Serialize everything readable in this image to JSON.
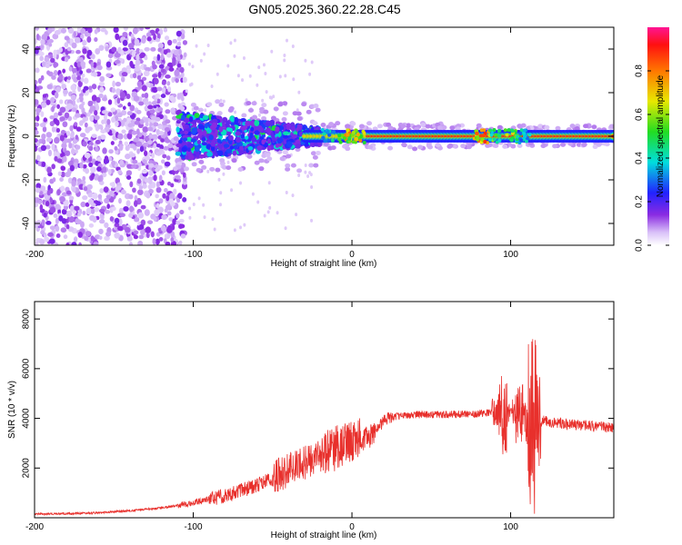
{
  "title": "GN05.2025.360.22.28.C45",
  "colors": {
    "trace": "#e8302c",
    "axis": "#000000"
  },
  "chart_data": [
    {
      "id": "spectrogram",
      "type": "heatmap",
      "xlabel": "Height of straight line (km)",
      "ylabel": "Frequency (Hz)",
      "xlim": [
        -200,
        165
      ],
      "ylim": [
        -50,
        50
      ],
      "xticks": [
        -200,
        -100,
        0,
        100
      ],
      "yticks": [
        -40,
        -20,
        0,
        20,
        40
      ],
      "colorbar": {
        "label": "Normalized spectral amplitude",
        "range": [
          0,
          1
        ],
        "ticks": [
          "0.0",
          "0.2",
          "0.4",
          "0.6",
          "0.8"
        ]
      },
      "regions": [
        {
          "x": [
            -200,
            -105
          ],
          "y": [
            -50,
            50
          ],
          "level": "scattered low amplitude"
        },
        {
          "x": [
            -105,
            -30
          ],
          "y": [
            -10,
            10
          ],
          "level": "mixed 0.1-0.5"
        },
        {
          "x": [
            -30,
            165
          ],
          "y": [
            -2,
            2
          ],
          "level": "ridge 0.7-1.0 at 0 Hz"
        }
      ]
    },
    {
      "id": "snr",
      "type": "line",
      "xlabel": "Height of straight line (km)",
      "ylabel": "SNR (10 * v/v)",
      "xlim": [
        -200,
        165
      ],
      "ylim": [
        0,
        8700
      ],
      "xticks": [
        -200,
        -100,
        0,
        100
      ],
      "yticks": [
        2000,
        4000,
        6000,
        8000
      ],
      "series": [
        {
          "name": "SNR",
          "x": [
            -200,
            -180,
            -160,
            -140,
            -120,
            -100,
            -90,
            -80,
            -70,
            -60,
            -50,
            -40,
            -30,
            -20,
            -10,
            0,
            5,
            10,
            15,
            20,
            25,
            30,
            40,
            60,
            80,
            90,
            95,
            100,
            105,
            110,
            113,
            115,
            118,
            120,
            130,
            140,
            150,
            160,
            165
          ],
          "y": [
            150,
            160,
            200,
            280,
            400,
            600,
            750,
            900,
            1100,
            1300,
            1600,
            1900,
            2200,
            2500,
            2800,
            3100,
            3150,
            3200,
            3500,
            3900,
            4050,
            4100,
            4150,
            4150,
            4200,
            4250,
            4100,
            4250,
            4300,
            4200,
            4000,
            3800,
            3800,
            3900,
            3800,
            3750,
            3700,
            3650,
            3600
          ]
        }
      ]
    }
  ]
}
